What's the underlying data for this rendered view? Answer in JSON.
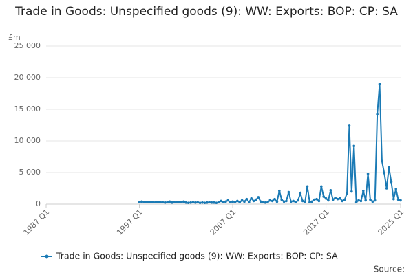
{
  "chart_data": {
    "type": "line",
    "title": "Trade in Goods: Unspecified goods (9): WW: Exports: BOP: CP: SA",
    "y_label": "£m",
    "source": "Source:",
    "categories": [
      "1987 Q1",
      null,
      null,
      null,
      null,
      null,
      null,
      null,
      null,
      null,
      null,
      null,
      null,
      null,
      null,
      null,
      null,
      null,
      null,
      null,
      null,
      null,
      null,
      null,
      null,
      null,
      null,
      null,
      null,
      null,
      null,
      null,
      null,
      null,
      null,
      null,
      null,
      null,
      null,
      null,
      "1997 Q1",
      null,
      null,
      null,
      null,
      null,
      null,
      null,
      null,
      null,
      null,
      null,
      null,
      null,
      null,
      null,
      null,
      null,
      null,
      null,
      null,
      null,
      null,
      null,
      null,
      null,
      null,
      null,
      null,
      null,
      null,
      null,
      null,
      null,
      null,
      null,
      null,
      null,
      null,
      null,
      "2007 Q1",
      null,
      null,
      null,
      null,
      null,
      null,
      null,
      null,
      null,
      null,
      null,
      null,
      null,
      null,
      null,
      null,
      null,
      null,
      null,
      null,
      null,
      null,
      null,
      null,
      null,
      null,
      null,
      null,
      null,
      null,
      null,
      null,
      null,
      null,
      null,
      null,
      null,
      null,
      null,
      "2017 Q1",
      null,
      null,
      null,
      null,
      null,
      null,
      null,
      null,
      null,
      null,
      null,
      null,
      null,
      null,
      null,
      null,
      null,
      null,
      null,
      null,
      null,
      null,
      null,
      null,
      null,
      null,
      null,
      null,
      null,
      null,
      null,
      "2025 Q1"
    ],
    "series": [
      {
        "name": "Trade in Goods: Unspecified goods (9): WW: Exports: BOP: CP: SA",
        "color": "#1a7ab5",
        "values": [
          null,
          null,
          null,
          null,
          null,
          null,
          null,
          null,
          null,
          null,
          null,
          null,
          null,
          null,
          null,
          null,
          null,
          null,
          null,
          null,
          null,
          null,
          null,
          null,
          null,
          null,
          null,
          null,
          null,
          null,
          null,
          null,
          null,
          null,
          null,
          null,
          null,
          null,
          null,
          null,
          300,
          400,
          300,
          350,
          300,
          350,
          300,
          300,
          350,
          300,
          300,
          250,
          300,
          400,
          250,
          300,
          300,
          350,
          300,
          400,
          250,
          200,
          250,
          300,
          250,
          300,
          200,
          250,
          200,
          250,
          300,
          250,
          250,
          200,
          300,
          500,
          300,
          400,
          600,
          300,
          400,
          300,
          500,
          300,
          600,
          400,
          800,
          300,
          900,
          500,
          700,
          1100,
          400,
          300,
          250,
          300,
          600,
          500,
          800,
          400,
          2100,
          700,
          400,
          500,
          1900,
          400,
          500,
          300,
          600,
          1700,
          500,
          300,
          2800,
          300,
          400,
          700,
          800,
          500,
          2800,
          1200,
          900,
          600,
          2200,
          700,
          1000,
          800,
          900,
          500,
          700,
          1700,
          12400,
          2000,
          9200,
          300,
          600,
          500,
          2100,
          600,
          4800,
          700,
          400,
          600,
          14200,
          19000,
          6800,
          4900,
          2500,
          5800,
          3500,
          800,
          2400,
          700,
          600
        ]
      }
    ],
    "ylim": [
      0,
      25000
    ],
    "yticks": [
      0,
      {
        "value": 5000,
        "label": "5 000"
      },
      {
        "value": 10000,
        "label": "10 000"
      },
      {
        "value": 15000,
        "label": "15 000"
      },
      {
        "value": 20000,
        "label": "20 000"
      },
      {
        "value": 25000,
        "label": "25 000"
      }
    ],
    "grid": true,
    "legend": "bottom"
  }
}
